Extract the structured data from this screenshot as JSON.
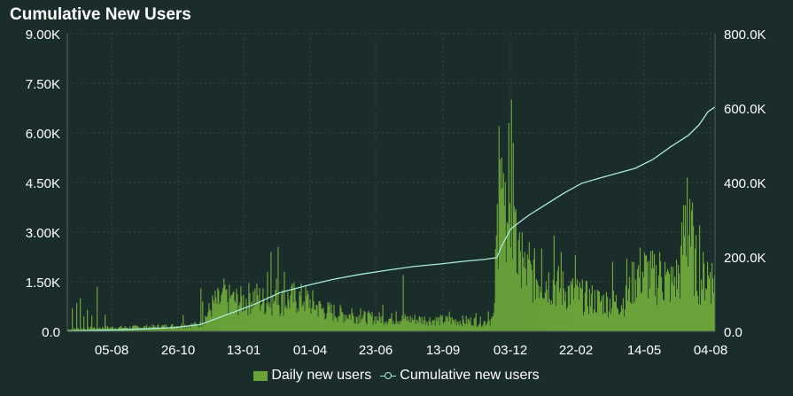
{
  "chart_data": {
    "type": "bar",
    "title": "Cumulative New Users",
    "x_tick_labels": [
      "05-08",
      "26-10",
      "13-01",
      "01-04",
      "23-06",
      "13-09",
      "03-12",
      "22-02",
      "14-05",
      "04-08"
    ],
    "y_left": {
      "ticks": [
        "0.0",
        "1.50K",
        "3.00K",
        "4.50K",
        "6.00K",
        "7.50K",
        "9.00K"
      ],
      "range": [
        0,
        9000
      ]
    },
    "y_right": {
      "ticks": [
        "0.0",
        "200.0K",
        "400.0K",
        "600.0K",
        "800.0K"
      ],
      "range": [
        0,
        800000
      ]
    },
    "grid": true,
    "legend_position": "bottom",
    "series": [
      {
        "name": "Daily new users",
        "type": "bar",
        "axis": "left",
        "color": "#6aa33a",
        "points": [
          [
            0,
            60
          ],
          [
            30,
            110
          ],
          [
            60,
            120
          ],
          [
            90,
            140
          ],
          [
            120,
            170
          ],
          [
            150,
            220
          ],
          [
            165,
            900
          ],
          [
            180,
            1000
          ],
          [
            195,
            950
          ],
          [
            210,
            1100
          ],
          [
            225,
            900
          ],
          [
            240,
            950
          ],
          [
            255,
            1050
          ],
          [
            270,
            1000
          ],
          [
            285,
            700
          ],
          [
            300,
            600
          ],
          [
            330,
            450
          ],
          [
            360,
            400
          ],
          [
            390,
            380
          ],
          [
            420,
            350
          ],
          [
            450,
            330
          ],
          [
            470,
            300
          ],
          [
            480,
            400
          ],
          [
            486,
            4800
          ],
          [
            490,
            4200
          ],
          [
            495,
            2800
          ],
          [
            500,
            3300
          ],
          [
            505,
            2400
          ],
          [
            510,
            2000
          ],
          [
            520,
            1800
          ],
          [
            540,
            1600
          ],
          [
            560,
            1300
          ],
          [
            580,
            1100
          ],
          [
            600,
            950
          ],
          [
            620,
            900
          ],
          [
            630,
            1000
          ],
          [
            640,
            1800
          ],
          [
            650,
            1900
          ],
          [
            660,
            1700
          ],
          [
            670,
            1600
          ],
          [
            680,
            1500
          ],
          [
            690,
            1800
          ],
          [
            695,
            3300
          ],
          [
            700,
            3100
          ],
          [
            705,
            2300
          ],
          [
            712,
            1700
          ]
        ]
      },
      {
        "name": "Cumulative new users",
        "type": "line",
        "axis": "right",
        "color": "#a8ecd8",
        "points": [
          [
            0,
            1000
          ],
          [
            60,
            4000
          ],
          [
            120,
            10000
          ],
          [
            150,
            18000
          ],
          [
            180,
            45000
          ],
          [
            210,
            72000
          ],
          [
            240,
            104000
          ],
          [
            270,
            123000
          ],
          [
            300,
            140000
          ],
          [
            330,
            153000
          ],
          [
            360,
            164000
          ],
          [
            390,
            174000
          ],
          [
            420,
            181000
          ],
          [
            450,
            189000
          ],
          [
            470,
            193000
          ],
          [
            484,
            198000
          ],
          [
            490,
            232000
          ],
          [
            500,
            276000
          ],
          [
            520,
            312000
          ],
          [
            540,
            342000
          ],
          [
            560,
            372000
          ],
          [
            580,
            398000
          ],
          [
            600,
            412000
          ],
          [
            620,
            425000
          ],
          [
            640,
            438000
          ],
          [
            660,
            462000
          ],
          [
            680,
            496000
          ],
          [
            700,
            527000
          ],
          [
            712,
            555000
          ],
          [
            722,
            590000
          ],
          [
            730,
            603000
          ]
        ]
      }
    ]
  }
}
